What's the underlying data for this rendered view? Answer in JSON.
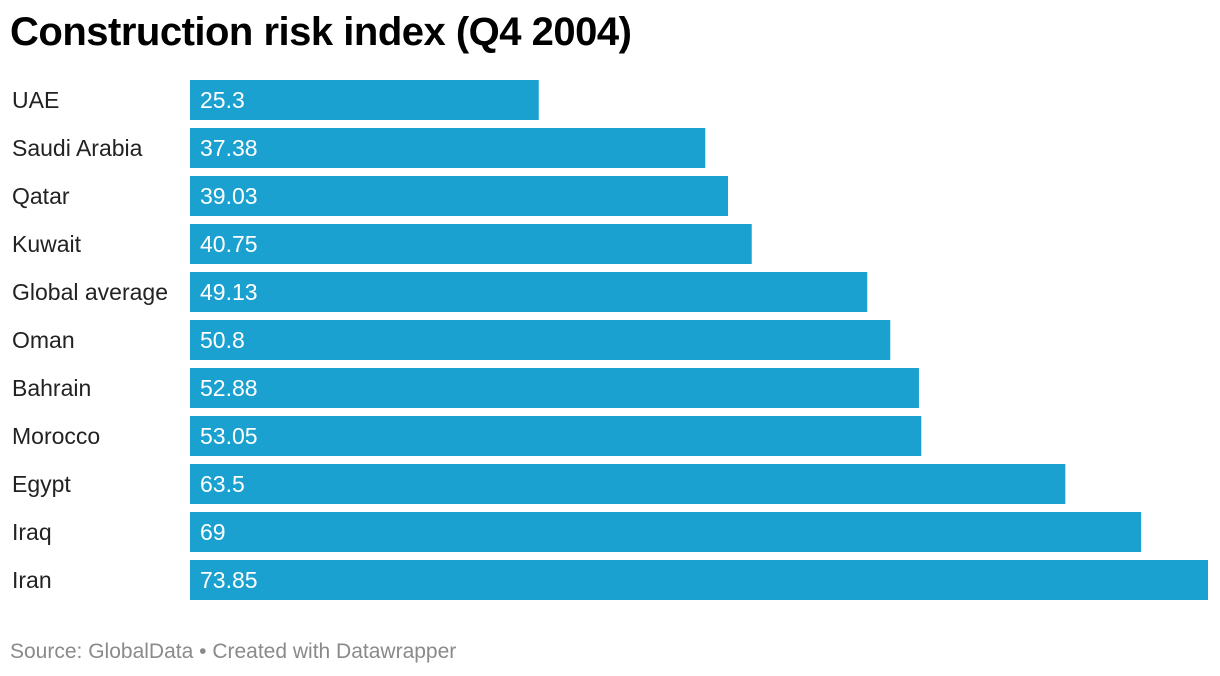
{
  "title": "Construction risk index (Q4 2004)",
  "footer": {
    "source": "Source: GlobalData",
    "separator": "•",
    "credit": "Created with Datawrapper"
  },
  "colors": {
    "bar": "#1aa1cf",
    "bar_label": "#ffffff",
    "row_label": "#222222",
    "footer": "#8a8a8a"
  },
  "chart_data": {
    "type": "bar",
    "orientation": "horizontal",
    "title": "Construction risk index (Q4 2004)",
    "categories": [
      "UAE",
      "Saudi Arabia",
      "Qatar",
      "Kuwait",
      "Global average",
      "Oman",
      "Bahrain",
      "Morocco",
      "Egypt",
      "Iraq",
      "Iran"
    ],
    "values": [
      25.3,
      37.38,
      39.03,
      40.75,
      49.13,
      50.8,
      52.88,
      53.05,
      63.5,
      69,
      73.85
    ],
    "value_labels": [
      "25.3",
      "37.38",
      "39.03",
      "40.75",
      "49.13",
      "50.8",
      "52.88",
      "53.05",
      "63.5",
      "69",
      "73.85"
    ],
    "xlim": [
      0,
      73.85
    ],
    "grid": false,
    "legend": "none"
  }
}
